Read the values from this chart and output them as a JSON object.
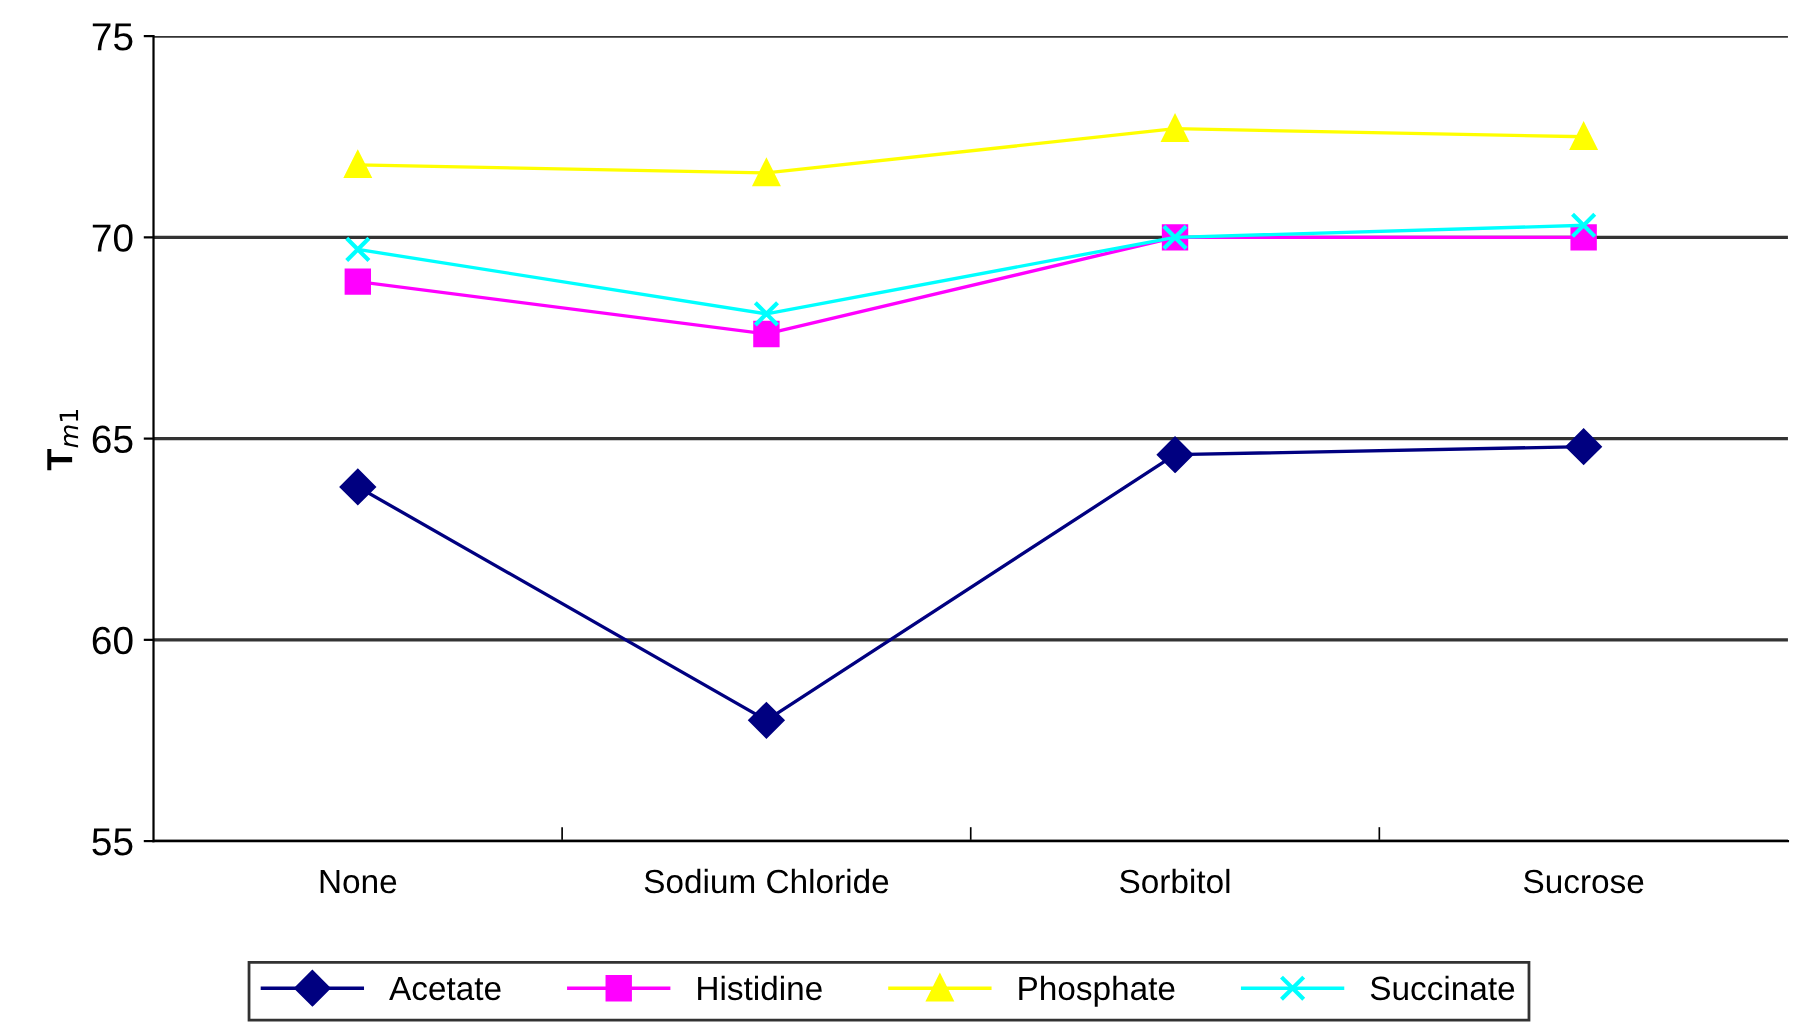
{
  "chart_data": {
    "type": "line",
    "ylabel": "T$_{m1}$",
    "categories": [
      "None",
      "Sodium Chloride",
      "Sorbitol",
      "Sucrose"
    ],
    "series": [
      {
        "name": "Acetate",
        "color": "#000080",
        "marker": "diamond",
        "values": [
          63.8,
          58.0,
          64.6,
          64.8
        ]
      },
      {
        "name": "Histidine",
        "color": "#ff00ff",
        "marker": "square",
        "values": [
          68.9,
          67.6,
          70.0,
          70.0
        ]
      },
      {
        "name": "Phosphate",
        "color": "#ffff00",
        "marker": "triangle",
        "values": [
          71.8,
          71.6,
          72.7,
          72.5
        ]
      },
      {
        "name": "Succinate",
        "color": "#00ffff",
        "marker": "cross",
        "values": [
          69.7,
          68.1,
          70.0,
          70.3
        ]
      }
    ],
    "ylim": [
      55,
      75
    ],
    "yticks": [
      55,
      60,
      65,
      70,
      75
    ],
    "grid": "y",
    "legend": "bottom",
    "line_style": "solid"
  }
}
